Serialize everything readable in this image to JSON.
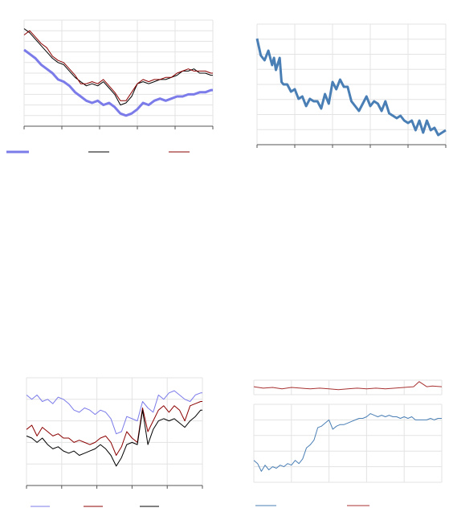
{
  "colors": {
    "light_blue": "#7b7bea",
    "black": "#000000",
    "dark_red": "#8b0000",
    "steel_blue": "#4a7fb5",
    "red": "#a83232",
    "grid": "#e3e3e3",
    "axis": "#555555"
  },
  "chart_data": [
    {
      "type": "line",
      "title": "",
      "xlabel": "",
      "ylabel": "",
      "grid": true,
      "legend": "bottom",
      "x_range": [
        0,
        100
      ],
      "y_range": [
        0,
        100
      ],
      "series": [
        {
          "color": "#7b7bea",
          "width": 3,
          "x": [
            0,
            3,
            6,
            9,
            12,
            15,
            18,
            21,
            24,
            27,
            30,
            33,
            36,
            39,
            42,
            45,
            48,
            51,
            54,
            57,
            60,
            63,
            66,
            69,
            72,
            75,
            78,
            81,
            84,
            87,
            90,
            93,
            96,
            99,
            100
          ],
          "y": [
            72,
            68,
            64,
            58,
            54,
            50,
            44,
            42,
            38,
            32,
            28,
            24,
            22,
            24,
            20,
            22,
            18,
            12,
            10,
            12,
            16,
            22,
            20,
            24,
            26,
            24,
            26,
            28,
            28,
            30,
            30,
            32,
            32,
            34,
            34
          ]
        },
        {
          "color": "#000000",
          "width": 1,
          "x": [
            0,
            3,
            6,
            9,
            12,
            15,
            18,
            21,
            24,
            27,
            30,
            33,
            36,
            39,
            42,
            45,
            48,
            51,
            54,
            57,
            60,
            63,
            66,
            69,
            72,
            75,
            78,
            81,
            84,
            87,
            90,
            93,
            96,
            99,
            100
          ],
          "y": [
            92,
            88,
            82,
            76,
            70,
            64,
            60,
            58,
            52,
            46,
            42,
            38,
            40,
            38,
            42,
            36,
            30,
            20,
            22,
            28,
            40,
            42,
            40,
            42,
            44,
            44,
            46,
            48,
            52,
            52,
            54,
            50,
            50,
            48,
            48
          ]
        },
        {
          "color": "#8b0000",
          "width": 1,
          "x": [
            0,
            3,
            6,
            9,
            12,
            15,
            18,
            21,
            24,
            27,
            30,
            33,
            36,
            39,
            42,
            45,
            48,
            51,
            54,
            57,
            60,
            63,
            66,
            69,
            72,
            75,
            78,
            81,
            84,
            87,
            90,
            93,
            96,
            99,
            100
          ],
          "y": [
            86,
            90,
            84,
            78,
            74,
            66,
            62,
            60,
            54,
            48,
            40,
            40,
            42,
            40,
            44,
            38,
            32,
            24,
            24,
            32,
            40,
            44,
            42,
            44,
            44,
            46,
            46,
            50,
            52,
            54,
            52,
            52,
            52,
            50,
            50
          ]
        }
      ]
    },
    {
      "type": "line",
      "title": "",
      "xlabel": "",
      "ylabel": "",
      "grid": true,
      "x_range": [
        0,
        100
      ],
      "y_range": [
        0,
        100
      ],
      "series": [
        {
          "color": "#4a7fb5",
          "width": 3,
          "x": [
            0,
            2,
            4,
            6,
            8,
            9,
            10,
            12,
            13,
            14,
            16,
            18,
            20,
            22,
            24,
            26,
            28,
            30,
            32,
            34,
            36,
            38,
            40,
            42,
            44,
            46,
            48,
            50,
            52,
            54,
            56,
            58,
            60,
            62,
            64,
            66,
            68,
            70,
            72,
            74,
            76,
            78,
            80,
            82,
            84,
            86,
            88,
            90,
            92,
            94,
            96,
            98,
            100
          ],
          "y": [
            88,
            74,
            70,
            78,
            66,
            72,
            62,
            72,
            52,
            50,
            50,
            44,
            46,
            38,
            40,
            32,
            38,
            36,
            36,
            30,
            42,
            34,
            52,
            46,
            54,
            48,
            48,
            36,
            32,
            28,
            34,
            40,
            32,
            36,
            34,
            28,
            36,
            26,
            24,
            22,
            24,
            20,
            18,
            20,
            12,
            20,
            10,
            20,
            12,
            14,
            8,
            10,
            12
          ]
        }
      ]
    },
    {
      "type": "line",
      "title": "",
      "xlabel": "",
      "ylabel": "",
      "grid": true,
      "legend": "bottom",
      "x_range": [
        0,
        100
      ],
      "y_range": [
        0,
        100
      ],
      "series": [
        {
          "color": "#7b7bea",
          "width": 1,
          "x": [
            0,
            3,
            6,
            9,
            12,
            15,
            18,
            21,
            24,
            27,
            30,
            33,
            36,
            39,
            42,
            45,
            48,
            51,
            54,
            57,
            60,
            63,
            66,
            69,
            72,
            75,
            78,
            81,
            84,
            87,
            90,
            93,
            96,
            99,
            100
          ],
          "y": [
            84,
            80,
            84,
            78,
            80,
            76,
            82,
            80,
            76,
            70,
            68,
            72,
            70,
            66,
            70,
            68,
            62,
            48,
            50,
            64,
            62,
            60,
            78,
            72,
            68,
            84,
            80,
            86,
            88,
            84,
            80,
            78,
            84,
            86,
            86
          ]
        },
        {
          "color": "#8b0000",
          "width": 1,
          "x": [
            0,
            3,
            6,
            9,
            12,
            15,
            18,
            21,
            24,
            27,
            30,
            33,
            36,
            39,
            42,
            45,
            48,
            51,
            54,
            57,
            60,
            63,
            66,
            69,
            72,
            75,
            78,
            81,
            84,
            87,
            90,
            93,
            96,
            99,
            100
          ],
          "y": [
            52,
            56,
            46,
            54,
            50,
            46,
            48,
            44,
            44,
            40,
            42,
            40,
            38,
            40,
            44,
            46,
            40,
            28,
            36,
            50,
            44,
            40,
            72,
            50,
            60,
            70,
            74,
            68,
            74,
            70,
            60,
            74,
            76,
            78,
            78
          ]
        },
        {
          "color": "#000000",
          "width": 1,
          "x": [
            0,
            3,
            6,
            9,
            12,
            15,
            18,
            21,
            24,
            27,
            30,
            33,
            36,
            39,
            42,
            45,
            48,
            51,
            54,
            57,
            60,
            63,
            66,
            69,
            72,
            75,
            78,
            81,
            84,
            87,
            90,
            93,
            96,
            99,
            100
          ],
          "y": [
            46,
            44,
            40,
            44,
            38,
            34,
            36,
            32,
            30,
            32,
            28,
            30,
            32,
            34,
            38,
            34,
            28,
            18,
            26,
            38,
            40,
            38,
            70,
            38,
            52,
            60,
            62,
            60,
            62,
            58,
            54,
            60,
            64,
            70,
            70
          ]
        }
      ]
    },
    {
      "type": "line",
      "title": "",
      "xlabel": "",
      "ylabel": "",
      "grid": true,
      "legend": "bottom",
      "x_range": [
        0,
        100
      ],
      "y_range": [
        0,
        100
      ],
      "series": [
        {
          "color": "#a83232",
          "width": 1,
          "panel": "top",
          "x": [
            0,
            5,
            10,
            15,
            20,
            25,
            30,
            35,
            40,
            45,
            50,
            55,
            60,
            65,
            70,
            75,
            80,
            85,
            88,
            92,
            95,
            100
          ],
          "y": [
            55,
            45,
            50,
            40,
            50,
            45,
            40,
            45,
            40,
            35,
            40,
            45,
            40,
            45,
            40,
            45,
            50,
            55,
            90,
            55,
            60,
            55
          ]
        },
        {
          "color": "#4a7fb5",
          "width": 1,
          "panel": "bottom",
          "x": [
            0,
            2,
            4,
            6,
            8,
            10,
            12,
            14,
            16,
            18,
            20,
            22,
            24,
            26,
            28,
            30,
            32,
            34,
            36,
            38,
            40,
            42,
            44,
            46,
            48,
            50,
            52,
            54,
            56,
            58,
            60,
            62,
            64,
            66,
            68,
            70,
            72,
            74,
            76,
            78,
            80,
            82,
            84,
            86,
            88,
            90,
            92,
            94,
            96,
            98,
            100
          ],
          "y": [
            28,
            24,
            14,
            22,
            16,
            20,
            18,
            22,
            20,
            24,
            22,
            28,
            24,
            30,
            44,
            48,
            54,
            70,
            72,
            76,
            80,
            68,
            72,
            74,
            74,
            76,
            78,
            80,
            82,
            82,
            84,
            88,
            86,
            84,
            86,
            84,
            86,
            84,
            84,
            82,
            84,
            82,
            84,
            80,
            80,
            80,
            80,
            82,
            80,
            82,
            82
          ]
        }
      ]
    }
  ]
}
